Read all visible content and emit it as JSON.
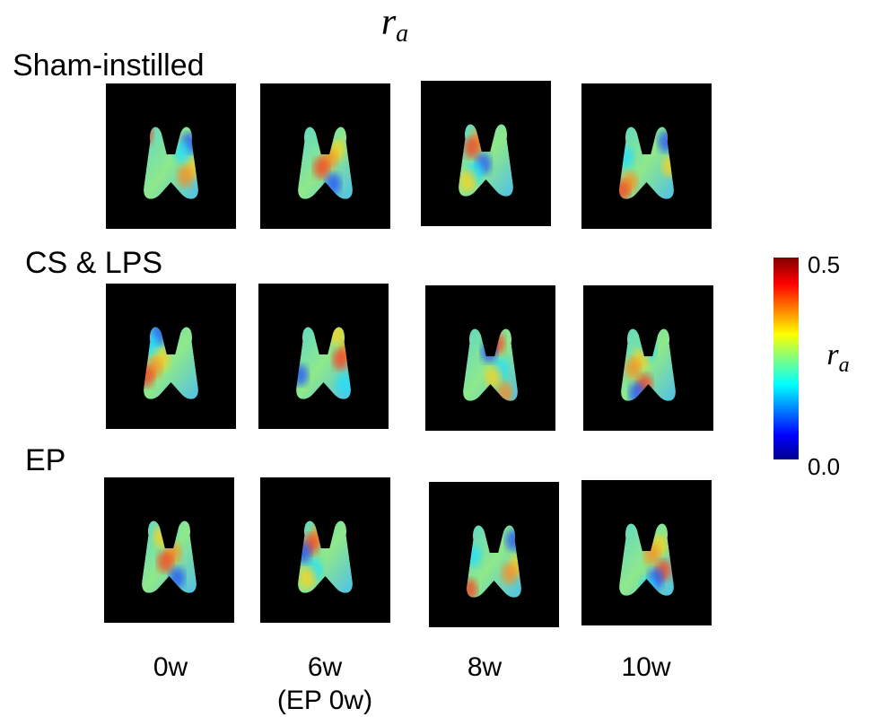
{
  "figure": {
    "title": {
      "symbol": "r",
      "subscript": "a"
    },
    "rows": [
      "Sham-instilled",
      "CS & LPS",
      "EP"
    ],
    "columns": [
      {
        "label": "0w"
      },
      {
        "label": "6w",
        "note": "(EP 0w)"
      },
      {
        "label": "8w"
      },
      {
        "label": "10w"
      }
    ],
    "colorbar": {
      "clim": [
        0.0,
        0.5
      ],
      "ticks": [
        {
          "value": 0.5,
          "label": "0.5"
        },
        {
          "value": 0.0,
          "label": "0.0"
        }
      ],
      "label": {
        "symbol": "r",
        "subscript": "a"
      }
    }
  }
}
